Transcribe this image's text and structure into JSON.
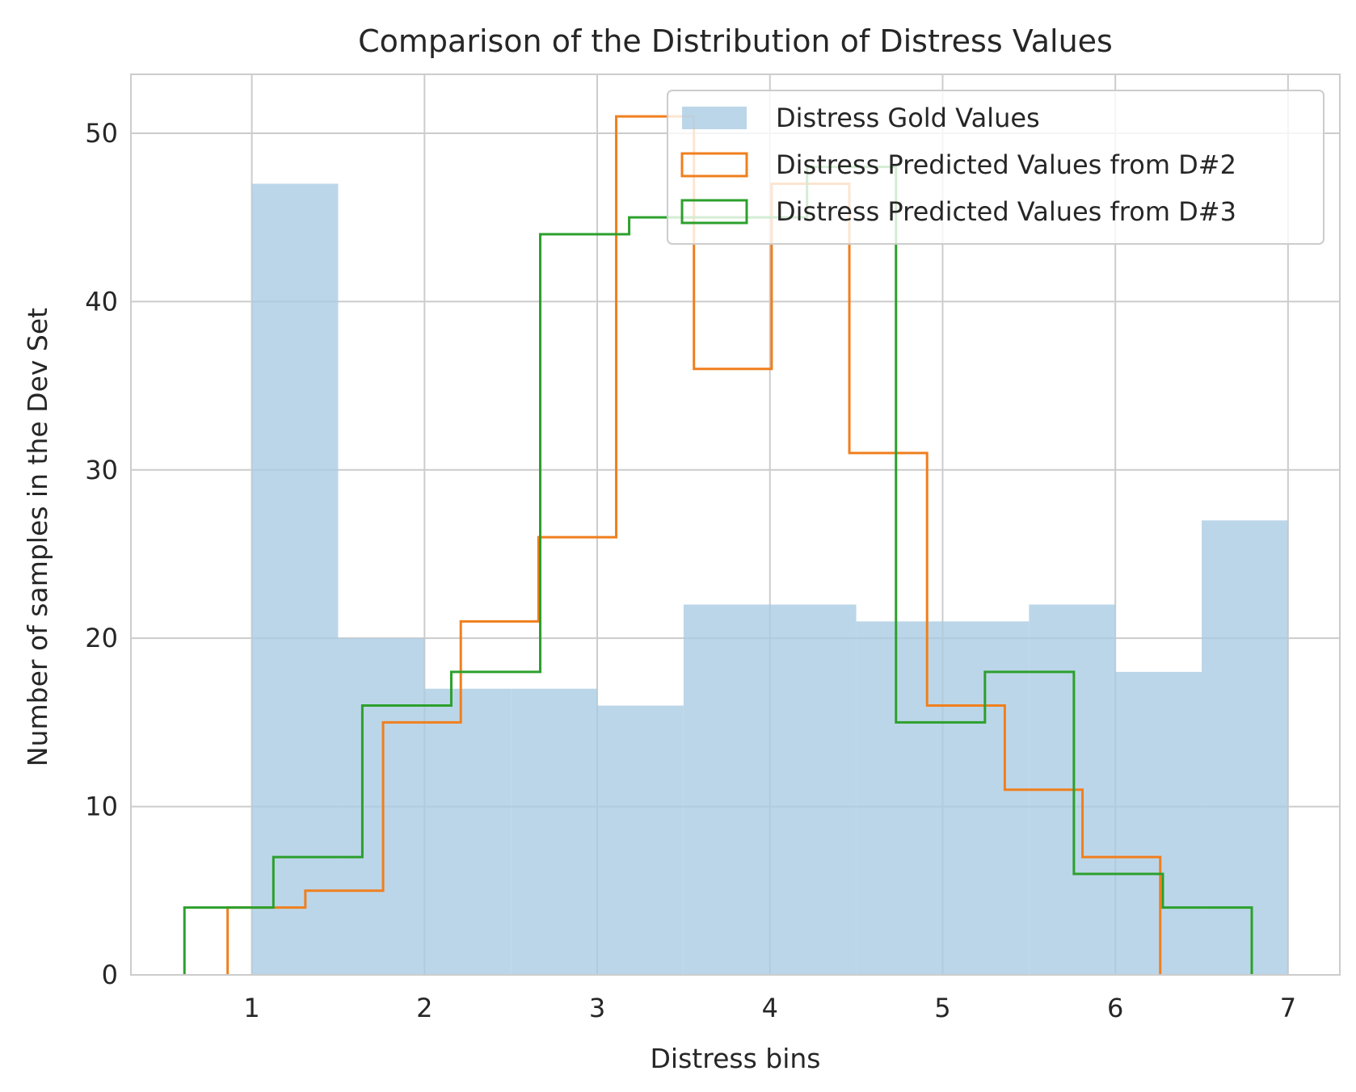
{
  "chart_data": {
    "type": "histogram",
    "title": "Comparison of the Distribution of Distress Values",
    "xlabel": "Distress bins",
    "ylabel": "Number of samples in the Dev Set",
    "xlim": [
      0.3,
      7.3
    ],
    "ylim": [
      0,
      53.5
    ],
    "xticks": [
      "1",
      "2",
      "3",
      "4",
      "5",
      "6",
      "7"
    ],
    "yticks": [
      "0",
      "10",
      "20",
      "30",
      "40",
      "50"
    ],
    "grid": true,
    "legend_position": "top-right",
    "series": [
      {
        "name": "Distress Gold Values",
        "style": "filled",
        "color": "#a9cbe3",
        "bin_edges": [
          1.0,
          1.5,
          2.0,
          2.5,
          3.0,
          3.5,
          4.0,
          4.5,
          5.0,
          5.5,
          6.0,
          6.5,
          7.0
        ],
        "counts": [
          47,
          20,
          17,
          17,
          16,
          22,
          22,
          21,
          21,
          22,
          18,
          27
        ]
      },
      {
        "name": "Distress Predicted Values from D#2",
        "style": "step",
        "color": "#f07f1d",
        "bin_edges": [
          0.86,
          1.31,
          1.76,
          2.21,
          2.66,
          3.11,
          3.56,
          4.01,
          4.46,
          4.91,
          5.36,
          5.81,
          6.26
        ],
        "counts": [
          4,
          5,
          15,
          21,
          26,
          51,
          36,
          47,
          31,
          16,
          11,
          7
        ]
      },
      {
        "name": "Distress Predicted Values from D#3",
        "style": "step",
        "color": "#2ca02c",
        "bin_edges": [
          0.61,
          1.125,
          1.64,
          2.155,
          2.67,
          3.185,
          3.7,
          4.215,
          4.73,
          5.245,
          5.76,
          6.275,
          6.79
        ],
        "counts": [
          4,
          7,
          16,
          18,
          44,
          45,
          45,
          48,
          15,
          18,
          6,
          4
        ]
      }
    ]
  }
}
